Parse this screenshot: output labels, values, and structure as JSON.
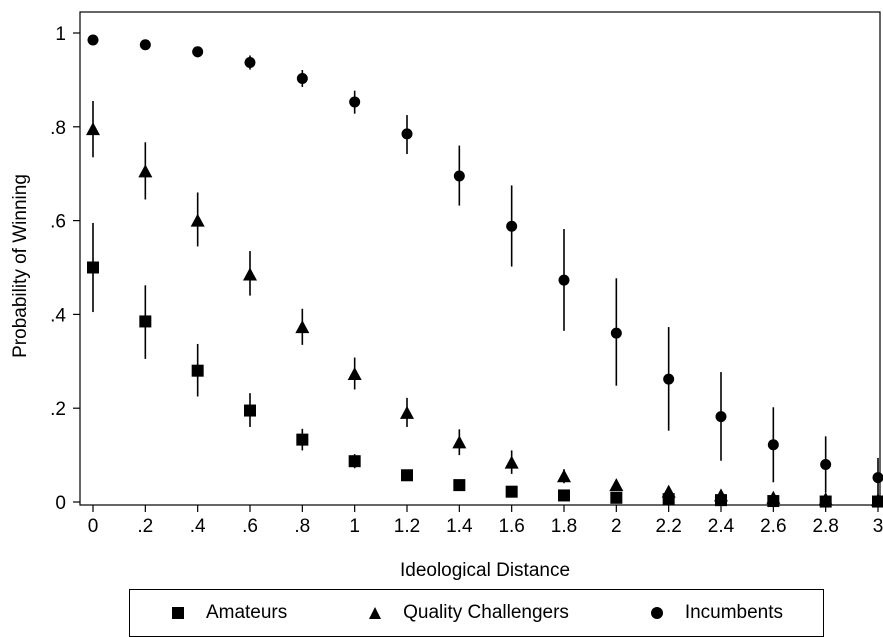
{
  "chart_data": {
    "type": "scatter",
    "title": "",
    "xlabel": "Ideological Distance",
    "ylabel": "Probability of Winning",
    "xlim": [
      0,
      3
    ],
    "ylim": [
      0,
      1
    ],
    "x_ticks": [
      0,
      0.2,
      0.4,
      0.6,
      0.8,
      1,
      1.2,
      1.4,
      1.6,
      1.8,
      2,
      2.2,
      2.4,
      2.6,
      2.8,
      3
    ],
    "x_tick_labels": [
      "0",
      ".2",
      ".4",
      ".6",
      ".8",
      "1",
      "1.2",
      "1.4",
      "1.6",
      "1.8",
      "2",
      "2.2",
      "2.4",
      "2.6",
      "2.8",
      "3"
    ],
    "y_ticks": [
      0,
      0.2,
      0.4,
      0.6,
      0.8,
      1
    ],
    "y_tick_labels": [
      "0",
      ".2",
      ".4",
      ".6",
      ".8",
      "1"
    ],
    "grid": false,
    "legend_position": "bottom",
    "error_bars": true,
    "series": [
      {
        "name": "Amateurs",
        "marker": "square",
        "x": [
          0,
          0.2,
          0.4,
          0.6,
          0.8,
          1,
          1.2,
          1.4,
          1.6,
          1.8,
          2,
          2.2,
          2.4,
          2.6,
          2.8,
          3
        ],
        "y": [
          0.5,
          0.385,
          0.28,
          0.195,
          0.133,
          0.087,
          0.057,
          0.036,
          0.022,
          0.014,
          0.009,
          0.006,
          0.004,
          0.002,
          0.001,
          0.001
        ],
        "lower": [
          0.405,
          0.305,
          0.225,
          0.16,
          0.11,
          0.072,
          0.046,
          0.028,
          0.016,
          0.009,
          0.005,
          0.003,
          0.001,
          0.0,
          0.0,
          0.0
        ],
        "upper": [
          0.595,
          0.462,
          0.337,
          0.232,
          0.156,
          0.102,
          0.068,
          0.044,
          0.028,
          0.019,
          0.013,
          0.009,
          0.007,
          0.004,
          0.003,
          0.002
        ]
      },
      {
        "name": "Quality Challengers",
        "marker": "triangle",
        "x": [
          0,
          0.2,
          0.4,
          0.6,
          0.8,
          1,
          1.2,
          1.4,
          1.6,
          1.8,
          2,
          2.2,
          2.4,
          2.6,
          2.8,
          3
        ],
        "y": [
          0.795,
          0.705,
          0.6,
          0.485,
          0.373,
          0.273,
          0.19,
          0.127,
          0.084,
          0.055,
          0.036,
          0.022,
          0.014,
          0.009,
          0.006,
          0.004
        ],
        "lower": [
          0.735,
          0.645,
          0.545,
          0.44,
          0.335,
          0.24,
          0.16,
          0.1,
          0.06,
          0.04,
          0.024,
          0.013,
          0.007,
          0.003,
          0.001,
          0.0
        ],
        "upper": [
          0.855,
          0.767,
          0.66,
          0.535,
          0.412,
          0.308,
          0.222,
          0.155,
          0.11,
          0.07,
          0.048,
          0.032,
          0.022,
          0.016,
          0.012,
          0.009
        ]
      },
      {
        "name": "Incumbents",
        "marker": "circle",
        "x": [
          0,
          0.2,
          0.4,
          0.6,
          0.8,
          1,
          1.2,
          1.4,
          1.6,
          1.8,
          2,
          2.2,
          2.4,
          2.6,
          2.8,
          3
        ],
        "y": [
          0.985,
          0.975,
          0.96,
          0.937,
          0.903,
          0.853,
          0.785,
          0.695,
          0.588,
          0.473,
          0.36,
          0.262,
          0.182,
          0.122,
          0.08,
          0.052
        ],
        "lower": [
          0.978,
          0.966,
          0.948,
          0.922,
          0.885,
          0.828,
          0.742,
          0.632,
          0.502,
          0.365,
          0.248,
          0.152,
          0.088,
          0.042,
          0.02,
          0.01
        ],
        "upper": [
          0.99,
          0.983,
          0.97,
          0.952,
          0.921,
          0.877,
          0.825,
          0.76,
          0.675,
          0.582,
          0.477,
          0.373,
          0.277,
          0.202,
          0.14,
          0.094
        ]
      }
    ]
  }
}
